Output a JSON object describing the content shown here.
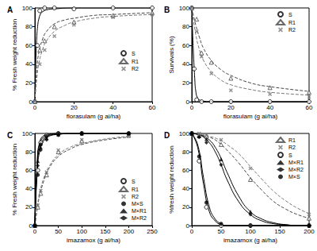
{
  "chart_data": [
    {
      "type": "scatter",
      "title": "A",
      "xlabel": "florasulam (g ai/ha)",
      "ylabel": "% Fresh weight reduction",
      "xlim": [
        0,
        60
      ],
      "xticks": [
        0,
        20,
        40,
        60
      ],
      "ylim": [
        0,
        100
      ],
      "yticks": [
        0,
        20,
        40,
        60,
        80,
        100
      ],
      "legend": "right",
      "series": [
        {
          "name": "S",
          "marker": "circle-open",
          "color": "#000000",
          "line_style": "solid",
          "x": [
            0,
            1.25,
            2.5,
            5,
            10,
            20,
            40,
            60
          ],
          "values": [
            0,
            60,
            97,
            100,
            100,
            99,
            100,
            100
          ],
          "fit": {
            "x": [
              0,
              0.5,
              1,
              1.5,
              2,
              3,
              4,
              6,
              10,
              20,
              60
            ],
            "values": [
              0,
              45,
              70,
              82,
              88,
              94,
              96,
              98,
              99,
              100,
              100
            ]
          }
        },
        {
          "name": "R1",
          "marker": "triangle-open",
          "color": "#444444",
          "line_style": "dashed",
          "x": [
            0,
            2.5,
            5,
            10,
            20,
            40,
            60
          ],
          "values": [
            0,
            55,
            65,
            80,
            85,
            92,
            95
          ],
          "fit": {
            "x": [
              0,
              1,
              2,
              4,
              6,
              10,
              15,
              20,
              30,
              40,
              60
            ],
            "values": [
              0,
              35,
              52,
              67,
              75,
              83,
              87,
              89,
              92,
              93,
              95
            ]
          }
        },
        {
          "name": "R2",
          "marker": "x",
          "color": "#777777",
          "line_style": "dashed",
          "x": [
            0,
            2.5,
            5,
            10,
            20,
            40,
            60
          ],
          "values": [
            0,
            40,
            55,
            70,
            82,
            90,
            93
          ],
          "fit": {
            "x": [
              0,
              1,
              2,
              4,
              6,
              10,
              15,
              20,
              30,
              40,
              60
            ],
            "values": [
              0,
              25,
              40,
              56,
              65,
              75,
              81,
              85,
              89,
              91,
              93
            ]
          }
        }
      ]
    },
    {
      "type": "scatter",
      "title": "B",
      "xlabel": "florasulam (g ai/ha)",
      "ylabel": "Survivals (%)",
      "xlim": [
        0,
        60
      ],
      "xticks": [
        0,
        20,
        40,
        60
      ],
      "ylim": [
        0,
        100
      ],
      "yticks": [
        0,
        20,
        40,
        60,
        80,
        100
      ],
      "legend": "upper right",
      "series": [
        {
          "name": "S",
          "marker": "circle-open",
          "color": "#000000",
          "line_style": "solid",
          "x": [
            0,
            1.25,
            2.5,
            5,
            10,
            20,
            40,
            60
          ],
          "values": [
            100,
            35,
            2,
            0,
            0,
            0,
            0,
            0
          ],
          "fit": {
            "x": [
              0,
              0.5,
              1,
              1.5,
              2,
              3,
              5,
              10,
              60
            ],
            "values": [
              100,
              70,
              45,
              25,
              12,
              4,
              1,
              0,
              0
            ]
          }
        },
        {
          "name": "R1",
          "marker": "triangle-open",
          "color": "#444444",
          "line_style": "dashed",
          "x": [
            0,
            2.5,
            5,
            10,
            20,
            40,
            60
          ],
          "values": [
            100,
            88,
            52,
            42,
            25,
            15,
            10
          ],
          "fit": {
            "x": [
              0,
              2,
              4,
              6,
              10,
              15,
              20,
              30,
              40,
              60
            ],
            "values": [
              100,
              82,
              68,
              57,
              44,
              34,
              28,
              20,
              16,
              11
            ]
          }
        },
        {
          "name": "R2",
          "marker": "x",
          "color": "#777777",
          "line_style": "dashed",
          "x": [
            0,
            2.5,
            5,
            10,
            20,
            40,
            60
          ],
          "values": [
            100,
            75,
            48,
            30,
            12,
            8,
            5
          ],
          "fit": {
            "x": [
              0,
              2,
              4,
              6,
              10,
              15,
              20,
              30,
              40,
              60
            ],
            "values": [
              100,
              72,
              55,
              44,
              32,
              23,
              18,
              13,
              10,
              7
            ]
          }
        }
      ]
    },
    {
      "type": "scatter",
      "title": "C",
      "xlabel": "imazamox (g ai/ha)",
      "ylabel": "% Fresh weight reduction",
      "xlim": [
        0,
        250
      ],
      "xticks": [
        0,
        50,
        100,
        150,
        200,
        250
      ],
      "ylim": [
        0,
        100
      ],
      "yticks": [
        0,
        20,
        40,
        60,
        80,
        100
      ],
      "legend": "lower right",
      "series": [
        {
          "name": "S",
          "marker": "circle-open",
          "color": "#000000",
          "line_style": "solid",
          "x": [
            0,
            6.25,
            12.5,
            25,
            50,
            100,
            200
          ],
          "values": [
            0,
            60,
            90,
            98,
            100,
            100,
            100
          ],
          "fit": {
            "x": [
              0,
              5,
              10,
              20,
              30,
              50,
              75,
              100,
              150,
              200
            ],
            "values": [
              0,
              70,
              90,
              98,
              99,
              100,
              100,
              100,
              100,
              100
            ]
          }
        },
        {
          "name": "R1",
          "marker": "triangle-open",
          "color": "#444444",
          "line_style": "dashed",
          "x": [
            0,
            6.25,
            12.5,
            25,
            50,
            100,
            200
          ],
          "values": [
            0,
            20,
            35,
            55,
            80,
            92,
            98
          ],
          "fit": {
            "x": [
              0,
              5,
              10,
              20,
              30,
              50,
              75,
              100,
              150,
              200
            ],
            "values": [
              0,
              18,
              32,
              50,
              62,
              75,
              83,
              88,
              93,
              96
            ]
          }
        },
        {
          "name": "R2",
          "marker": "x",
          "color": "#777777",
          "line_style": "dashed",
          "x": [
            0,
            6.25,
            12.5,
            25,
            50,
            100,
            200
          ],
          "values": [
            0,
            22,
            38,
            58,
            82,
            93,
            97
          ],
          "fit": {
            "x": [
              0,
              5,
              10,
              20,
              30,
              50,
              75,
              100,
              150,
              200
            ],
            "values": [
              0,
              20,
              35,
              53,
              64,
              77,
              85,
              89,
              94,
              97
            ]
          }
        },
        {
          "name": "M×S",
          "marker": "circle",
          "color": "#000000",
          "line_style": "solid",
          "x": [
            0,
            6.25,
            12.5,
            25,
            50,
            100,
            200
          ],
          "values": [
            0,
            55,
            88,
            97,
            100,
            100,
            100
          ],
          "fit": {
            "x": [
              0,
              5,
              10,
              20,
              30,
              50,
              75,
              100,
              150,
              200
            ],
            "values": [
              0,
              66,
              88,
              97,
              99,
              100,
              100,
              100,
              100,
              100
            ]
          }
        },
        {
          "name": "M×R1",
          "marker": "triangle",
          "color": "#000000",
          "line_style": "solid",
          "x": [
            0,
            6.25,
            12.5,
            25,
            50,
            100,
            200
          ],
          "values": [
            0,
            70,
            85,
            95,
            99,
            100,
            100
          ],
          "fit": {
            "x": [
              0,
              5,
              10,
              20,
              30,
              50,
              75,
              100,
              150,
              200
            ],
            "values": [
              0,
              62,
              84,
              95,
              98,
              99,
              100,
              100,
              100,
              100
            ]
          }
        },
        {
          "name": "M×R2",
          "marker": "diamond",
          "color": "#000000",
          "line_style": "solid",
          "x": [
            0,
            6.25,
            12.5,
            25,
            50,
            100,
            200
          ],
          "values": [
            0,
            65,
            82,
            93,
            98,
            100,
            100
          ],
          "fit": {
            "x": [
              0,
              5,
              10,
              20,
              30,
              50,
              75,
              100,
              150,
              200
            ],
            "values": [
              0,
              58,
              80,
              93,
              97,
              99,
              100,
              100,
              100,
              100
            ]
          }
        }
      ]
    },
    {
      "type": "scatter",
      "title": "D",
      "xlabel": "imazamox (g ai/ha)",
      "ylabel": "%fresh weight reduction",
      "xlim": [
        0,
        200
      ],
      "xticks": [
        0,
        50,
        100,
        150,
        200
      ],
      "ylim": [
        0,
        100
      ],
      "yticks": [
        0,
        20,
        40,
        60,
        80,
        100
      ],
      "legend": "upper right",
      "series": [
        {
          "name": "R1",
          "marker": "triangle-open",
          "color": "#444444",
          "line_style": "dashed",
          "x": [
            0,
            12.5,
            25,
            50,
            100,
            200
          ],
          "values": [
            100,
            98,
            97,
            88,
            50,
            8
          ],
          "fit": {
            "x": [
              0,
              10,
              20,
              30,
              40,
              50,
              60,
              80,
              100,
              120,
              140,
              160,
              180,
              200
            ],
            "values": [
              100,
              99,
              98,
              96,
              93,
              88,
              82,
              68,
              52,
              38,
              26,
              18,
              12,
              8
            ]
          }
        },
        {
          "name": "R2",
          "marker": "x",
          "color": "#777777",
          "line_style": "dashed",
          "x": [
            0,
            12.5,
            25,
            50,
            100,
            200
          ],
          "values": [
            100,
            100,
            98,
            93,
            62,
            12
          ],
          "fit": {
            "x": [
              0,
              10,
              20,
              30,
              40,
              50,
              60,
              80,
              100,
              120,
              140,
              160,
              180,
              200
            ],
            "values": [
              100,
              100,
              99,
              97,
              95,
              92,
              88,
              78,
              64,
              50,
              37,
              27,
              19,
              13
            ]
          }
        },
        {
          "name": "S",
          "marker": "circle-open",
          "color": "#000000",
          "line_style": "solid",
          "x": [
            0,
            12.5,
            25,
            50,
            100,
            200
          ],
          "values": [
            100,
            70,
            20,
            0,
            0,
            0
          ],
          "fit": {
            "x": [
              0,
              10,
              20,
              30,
              40,
              50,
              60,
              80,
              100,
              120,
              140,
              160,
              180,
              200
            ],
            "values": [
              100,
              85,
              45,
              15,
              5,
              1,
              0,
              0,
              0,
              0,
              0,
              0,
              0,
              0
            ]
          }
        },
        {
          "name": "M×R1",
          "marker": "triangle",
          "color": "#000000",
          "line_style": "solid",
          "x": [
            0,
            12.5,
            25,
            50,
            100,
            200
          ],
          "values": [
            100,
            97,
            94,
            72,
            15,
            0
          ],
          "fit": {
            "x": [
              0,
              10,
              20,
              30,
              40,
              50,
              60,
              80,
              100,
              120,
              140,
              160,
              180,
              200
            ],
            "values": [
              100,
              99,
              97,
              93,
              85,
              73,
              58,
              32,
              15,
              7,
              3,
              1,
              0,
              0
            ]
          }
        },
        {
          "name": "M×R2",
          "marker": "diamond",
          "color": "#000000",
          "line_style": "solid",
          "x": [
            0,
            12.5,
            25,
            50,
            100,
            200
          ],
          "values": [
            100,
            96,
            90,
            66,
            12,
            0
          ],
          "fit": {
            "x": [
              0,
              10,
              20,
              30,
              40,
              50,
              60,
              80,
              100,
              120,
              140,
              160,
              180,
              200
            ],
            "values": [
              100,
              99,
              96,
              90,
              80,
              66,
              50,
              26,
              12,
              5,
              2,
              1,
              0,
              0
            ]
          }
        },
        {
          "name": "M×S",
          "marker": "circle",
          "color": "#000000",
          "line_style": "solid",
          "x": [
            0,
            12.5,
            25,
            50,
            100,
            200
          ],
          "values": [
            100,
            75,
            25,
            2,
            0,
            0
          ],
          "fit": {
            "x": [
              0,
              10,
              20,
              30,
              40,
              50,
              60,
              80,
              100,
              120,
              140,
              160,
              180,
              200
            ],
            "values": [
              100,
              88,
              52,
              20,
              7,
              2,
              0,
              0,
              0,
              0,
              0,
              0,
              0,
              0
            ]
          }
        }
      ]
    }
  ]
}
